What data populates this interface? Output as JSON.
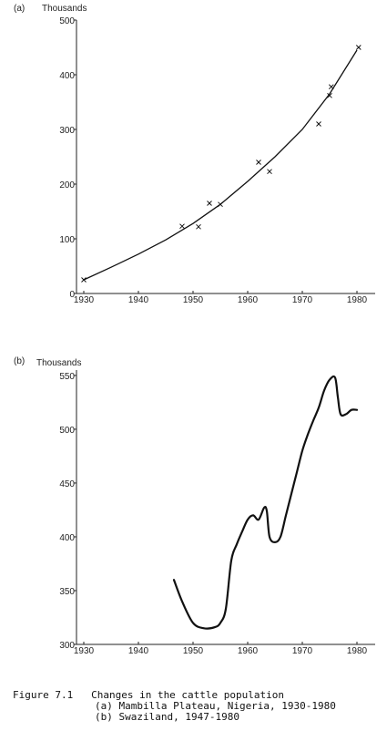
{
  "chart_data": [
    {
      "type": "scatter",
      "panel_label": "(a)",
      "ylabel": "Thousands",
      "xlim": [
        1929,
        1983
      ],
      "ylim": [
        0,
        500
      ],
      "x_ticks": [
        1930,
        1940,
        1950,
        1960,
        1970,
        1980
      ],
      "x_tick_labels": [
        "1930",
        "1940",
        "1950",
        "1960",
        "1970",
        "1980"
      ],
      "y_ticks": [
        0,
        100,
        200,
        300,
        400,
        500
      ],
      "y_tick_labels": [
        "0",
        "100",
        "200",
        "300",
        "400",
        "500"
      ],
      "points": [
        {
          "x": 1930,
          "y": 25
        },
        {
          "x": 1948,
          "y": 123
        },
        {
          "x": 1951,
          "y": 122
        },
        {
          "x": 1953,
          "y": 165
        },
        {
          "x": 1955,
          "y": 163
        },
        {
          "x": 1962,
          "y": 240
        },
        {
          "x": 1964,
          "y": 223
        },
        {
          "x": 1973,
          "y": 310
        },
        {
          "x": 1975,
          "y": 362
        },
        {
          "x": 1975.3,
          "y": 378
        },
        {
          "x": 1980.3,
          "y": 450
        }
      ],
      "trend": [
        {
          "x": 1930,
          "y": 25
        },
        {
          "x": 1935,
          "y": 48
        },
        {
          "x": 1940,
          "y": 72
        },
        {
          "x": 1945,
          "y": 98
        },
        {
          "x": 1950,
          "y": 128
        },
        {
          "x": 1955,
          "y": 163
        },
        {
          "x": 1960,
          "y": 205
        },
        {
          "x": 1965,
          "y": 250
        },
        {
          "x": 1970,
          "y": 300
        },
        {
          "x": 1975,
          "y": 365
        },
        {
          "x": 1980,
          "y": 445
        }
      ],
      "grid": false
    },
    {
      "type": "line",
      "panel_label": "(b)",
      "ylabel": "Thousands",
      "xlim": [
        1929,
        1983
      ],
      "ylim": [
        300,
        555
      ],
      "x_ticks": [
        1930,
        1940,
        1950,
        1960,
        1970,
        1980
      ],
      "x_tick_labels": [
        "1930",
        "1940",
        "1950",
        "1960",
        "1970",
        "1980"
      ],
      "y_ticks": [
        300,
        350,
        400,
        450,
        500,
        550
      ],
      "y_tick_labels": [
        "300",
        "350",
        "400",
        "450",
        "500",
        "550"
      ],
      "series": [
        {
          "x": [
            1946.5,
            1948,
            1950,
            1952,
            1954,
            1955,
            1956,
            1957,
            1958,
            1959,
            1960,
            1961,
            1962,
            1963,
            1963.5,
            1964,
            1965,
            1966,
            1967,
            1968,
            1969,
            1970,
            1971,
            1972,
            1973,
            1974,
            1975,
            1976,
            1976.5,
            1977,
            1978,
            1979,
            1980
          ],
          "y": [
            360,
            340,
            320,
            315,
            316,
            320,
            333,
            378,
            393,
            405,
            416,
            420,
            416,
            427,
            424,
            400,
            395,
            400,
            420,
            440,
            460,
            480,
            495,
            508,
            520,
            536,
            546,
            548,
            530,
            514,
            514,
            518,
            518
          ]
        }
      ],
      "grid": false
    }
  ],
  "caption": {
    "title": "Figure 7.1   Changes in the cattle population",
    "line1": "(a) Mambilla Plateau, Nigeria, 1930-1980",
    "line2": "(b) Swaziland, 1947-1980"
  }
}
